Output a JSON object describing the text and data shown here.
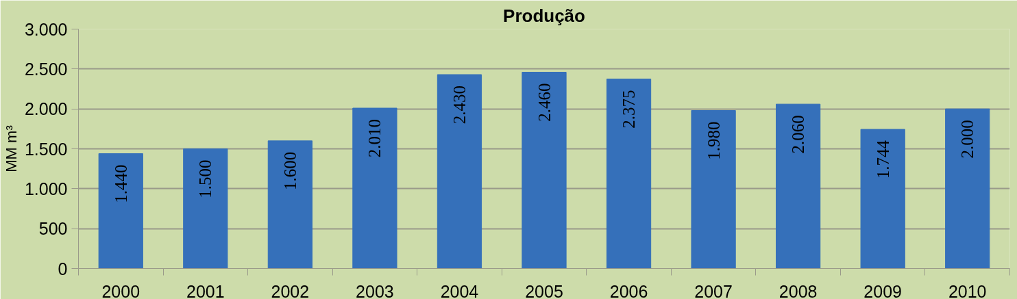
{
  "chart_data": {
    "type": "bar",
    "title": "Produção",
    "ylabel": "MM m³",
    "categories": [
      "2000",
      "2001",
      "2002",
      "2003",
      "2004",
      "2005",
      "2006",
      "2007",
      "2008",
      "2009",
      "2010"
    ],
    "values": [
      1440,
      1500,
      1600,
      2010,
      2430,
      2460,
      2375,
      1980,
      2060,
      1744,
      2000
    ],
    "value_labels": [
      "1.440",
      "1.500",
      "1.600",
      "2.010",
      "2.430",
      "2.460",
      "2.375",
      "1.980",
      "2.060",
      "1.744",
      "2.000"
    ],
    "color": "#3570ba",
    "ylim": [
      0,
      3000
    ],
    "yticks": [
      0,
      500,
      {
        "value": 1000,
        "label": "1.000"
      },
      {
        "value": 1500,
        "label": "1.500"
      },
      {
        "value": 2000,
        "label": "2.000"
      },
      {
        "value": 2500,
        "label": "2.500"
      },
      {
        "value": 3000,
        "label": "3.000"
      }
    ],
    "grid": "y"
  }
}
